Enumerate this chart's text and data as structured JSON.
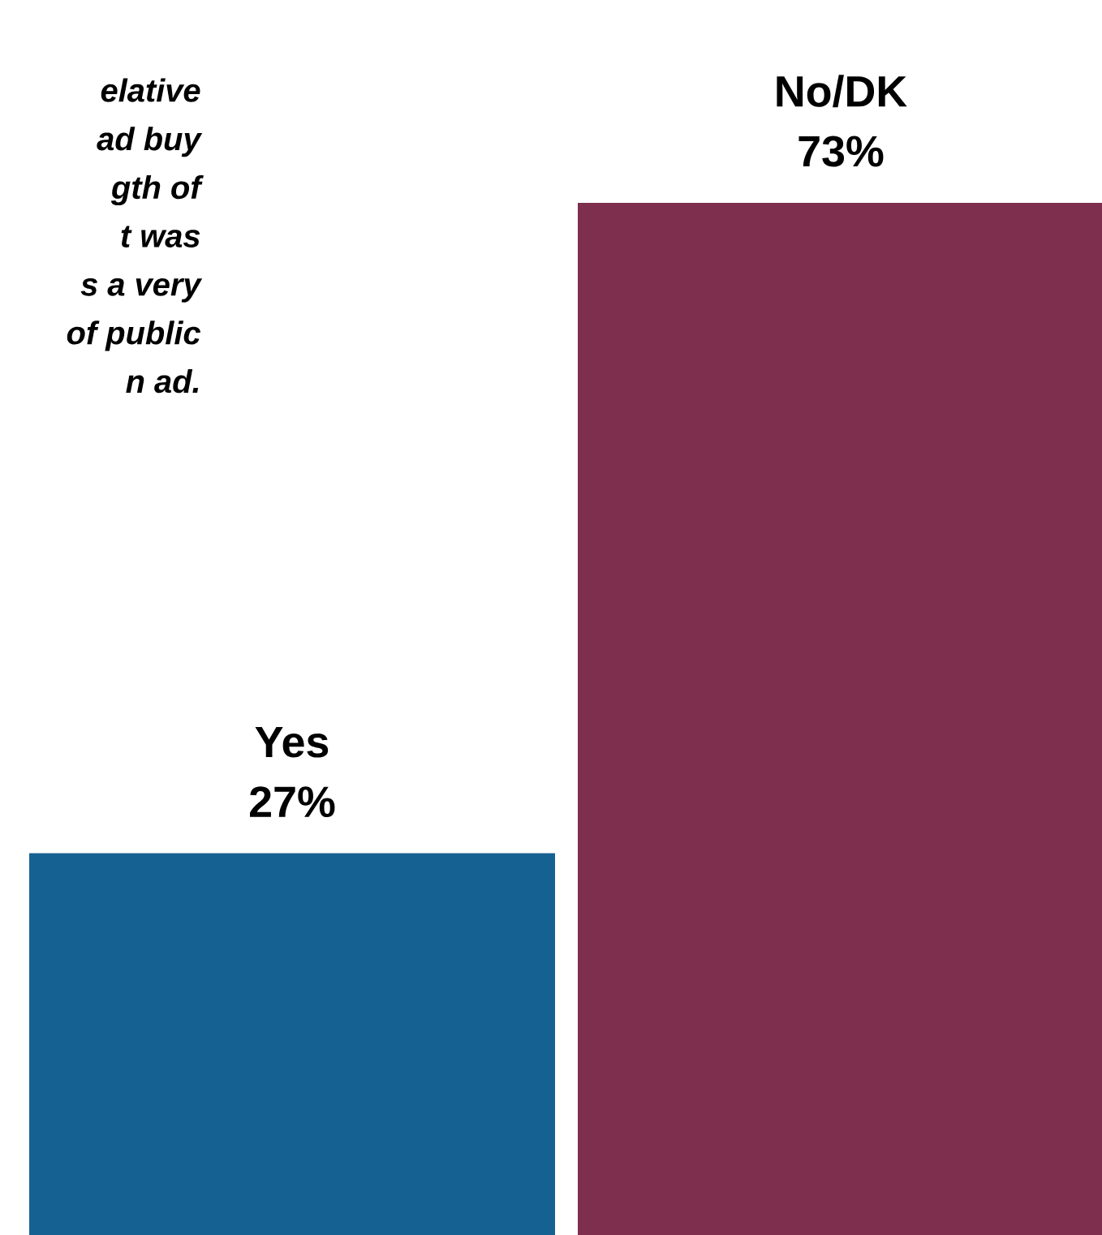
{
  "chart_data": {
    "type": "bar",
    "categories": [
      "Yes",
      "No/DK"
    ],
    "values": [
      27,
      73
    ],
    "colors": [
      "#156192",
      "#7f2f4e"
    ],
    "value_labels": [
      "27%",
      "73%"
    ],
    "annotations": [
      "elative",
      "ad buy",
      "gth of",
      "t was",
      "s a very",
      "of public",
      "n ad."
    ]
  }
}
